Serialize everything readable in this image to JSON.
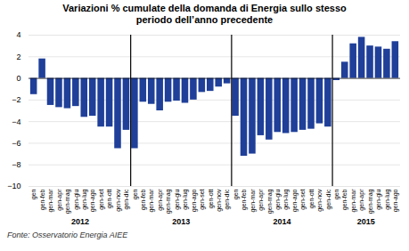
{
  "chart_data": {
    "type": "bar",
    "title": "Variazioni % cumulate della domanda di Energia sullo stesso\nperiodo dell’anno precedente",
    "source": "Fonte: Osservatorio Energia AIEE",
    "categories": [
      "gen",
      "gen-feb",
      "gen-mar",
      "gen-apr",
      "gen-mag",
      "gen-giu",
      "gen-lug",
      "gen-ago",
      "gen-set",
      "gen-ott",
      "gen-nov",
      "gen-dic",
      "gen",
      "gen-feb",
      "gen-mar",
      "gen-apr",
      "gen-mag",
      "gen-giu",
      "gen-lug",
      "gen-ago",
      "gen-set",
      "gen-ott",
      "gen-nov",
      "gen-dic",
      "gen",
      "gen-feb",
      "gen-mar",
      "gen-apr",
      "gen-mag",
      "gen-giu",
      "gen-lug",
      "gen-ago",
      "gen-set",
      "gen-ott",
      "gen-nov",
      "gen-dic",
      "gen",
      "gen-feb",
      "gen-mar",
      "gen-apr",
      "gen-mag",
      "gen-giu",
      "gen-lug",
      "gen-ago"
    ],
    "groups": [
      "2012",
      "2012",
      "2012",
      "2012",
      "2012",
      "2012",
      "2012",
      "2012",
      "2012",
      "2012",
      "2012",
      "2012",
      "2013",
      "2013",
      "2013",
      "2013",
      "2013",
      "2013",
      "2013",
      "2013",
      "2013",
      "2013",
      "2013",
      "2013",
      "2014",
      "2014",
      "2014",
      "2014",
      "2014",
      "2014",
      "2014",
      "2014",
      "2014",
      "2014",
      "2014",
      "2014",
      "2015",
      "2015",
      "2015",
      "2015",
      "2015",
      "2015",
      "2015",
      "2015"
    ],
    "values": [
      -1.5,
      1.8,
      -2.5,
      -2.7,
      -2.8,
      -2.6,
      -3.6,
      -3.5,
      -4.5,
      -4.5,
      -6.5,
      -4.8,
      -6.5,
      -2.2,
      -2.4,
      -3.0,
      -2.2,
      -2.1,
      -2.3,
      -2.0,
      -1.3,
      -1.2,
      -0.8,
      -0.5,
      -3.5,
      -7.2,
      -7.0,
      -5.3,
      -5.7,
      -5.0,
      -5.1,
      -5.0,
      -4.8,
      -4.7,
      -4.2,
      -4.5,
      -0.2,
      1.5,
      3.2,
      3.8,
      3.0,
      2.9,
      2.7,
      3.4
    ],
    "color": "#1F3F99",
    "ylim": [
      -10,
      4
    ],
    "yticks": [
      -10,
      -8,
      -6,
      -4,
      -2,
      0,
      2,
      4
    ],
    "grid": true
  }
}
